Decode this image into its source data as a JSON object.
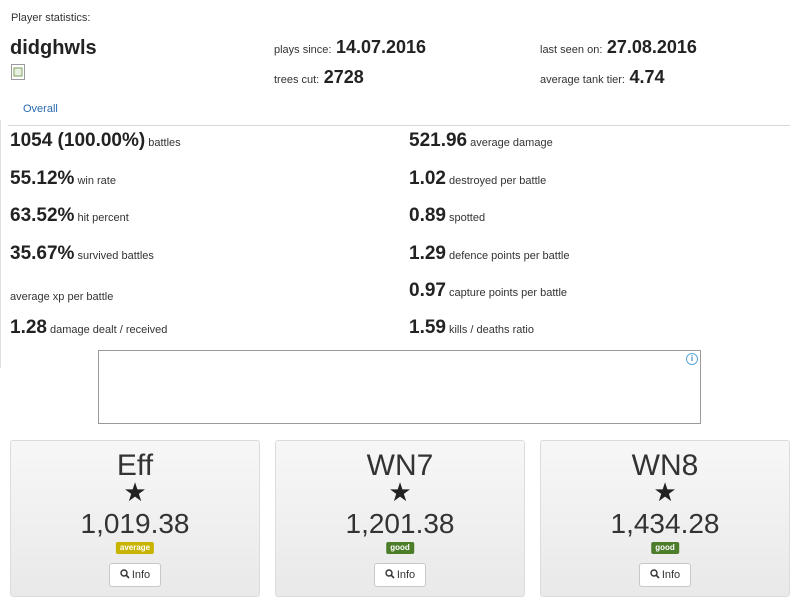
{
  "header": {
    "section_label": "Player statistics:",
    "player_name": "didghwls",
    "plays_since_label": "plays since:",
    "plays_since_value": "14.07.2016",
    "last_seen_label": "last seen on:",
    "last_seen_value": "27.08.2016",
    "trees_cut_label": "trees cut:",
    "trees_cut_value": "2728",
    "avg_tier_label": "average tank tier:",
    "avg_tier_value": "4.74"
  },
  "tabs": {
    "overall": "Overall"
  },
  "stats_left": [
    {
      "value": "1054 (100.00%)",
      "label": "battles"
    },
    {
      "value": "55.12%",
      "label": "win rate"
    },
    {
      "value": "63.52%",
      "label": "hit percent"
    },
    {
      "value": "35.67%",
      "label": "survived battles"
    },
    {
      "value": "",
      "label": "average xp per battle"
    },
    {
      "value": "1.28",
      "label": "damage dealt / received"
    }
  ],
  "stats_right": [
    {
      "value": "521.96",
      "label": "average damage"
    },
    {
      "value": "1.02",
      "label": "destroyed per battle"
    },
    {
      "value": "0.89",
      "label": "spotted"
    },
    {
      "value": "1.29",
      "label": "defence points per battle"
    },
    {
      "value": "0.97",
      "label": "capture points per battle"
    },
    {
      "value": "1.59",
      "label": "kills / deaths ratio"
    }
  ],
  "ad": {
    "icon": "info-icon",
    "icon_glyph": "i"
  },
  "ratings": [
    {
      "name": "Eff",
      "value": "1,019.38",
      "badge": "average",
      "badge_color": "#c8b400",
      "button": "Info"
    },
    {
      "name": "WN7",
      "value": "1,201.38",
      "badge": "good",
      "badge_color": "#4e7d2a",
      "button": "Info"
    },
    {
      "name": "WN8",
      "value": "1,434.28",
      "badge": "good",
      "badge_color": "#4e7d2a",
      "button": "Info"
    }
  ],
  "icons": {
    "star": "★",
    "search": "search-icon"
  }
}
